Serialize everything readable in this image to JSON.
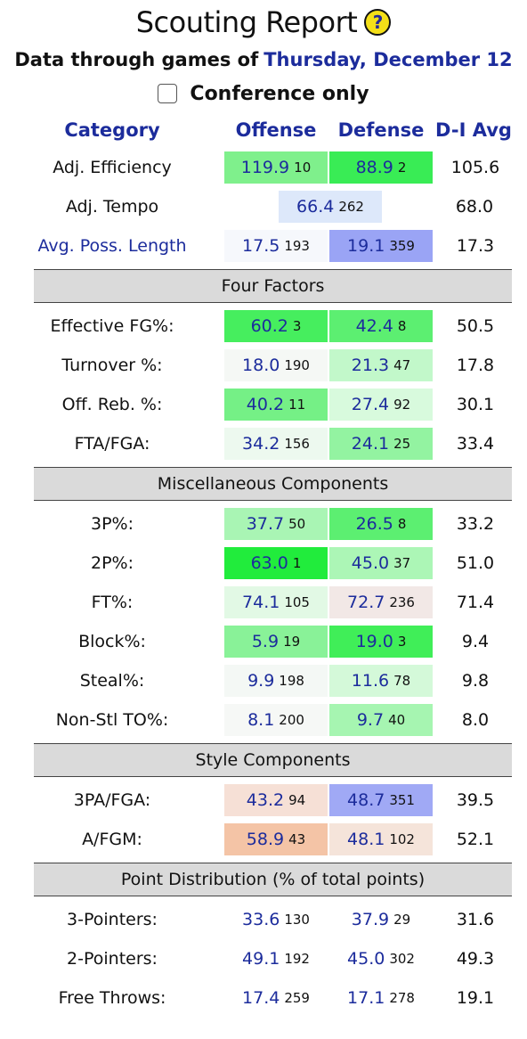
{
  "page": {
    "title": "Scouting Report",
    "help_symbol": "?",
    "subtitle_prefix": "Data through games of",
    "subtitle_date": "Thursday, December 12",
    "conference_label": "Conference only",
    "conference_checked": false
  },
  "headers": {
    "category": "Category",
    "offense": "Offense",
    "defense": "Defense",
    "avg": "D-I Avg"
  },
  "top": {
    "efficiency": {
      "label": "Adj. Efficiency",
      "off": "119.9",
      "off_rank": "10",
      "def": "88.9",
      "def_rank": "2",
      "avg": "105.6",
      "off_color": "#7ff08c",
      "def_color": "#39ec55"
    },
    "tempo": {
      "label": "Adj. Tempo",
      "val": "66.4",
      "rank": "262",
      "avg": "68.0",
      "color": "#dde8fa"
    },
    "poss": {
      "label": "Avg. Poss. Length",
      "off": "17.5",
      "off_rank": "193",
      "def": "19.1",
      "def_rank": "359",
      "avg": "17.3",
      "off_color": "#f6f8fc",
      "def_color": "#9aa4f5"
    }
  },
  "sections": {
    "four_factors": "Four Factors",
    "misc": "Miscellaneous Components",
    "style": "Style Components",
    "points": "Point Distribution (% of total points)"
  },
  "four_factors": [
    {
      "label": "Effective FG%:",
      "off": "60.2",
      "off_rank": "3",
      "def": "42.4",
      "def_rank": "8",
      "avg": "50.5",
      "off_color": "#46ee5e",
      "def_color": "#5cef71"
    },
    {
      "label": "Turnover %:",
      "off": "18.0",
      "off_rank": "190",
      "def": "21.3",
      "def_rank": "47",
      "avg": "17.8",
      "off_color": "#f5f8f5",
      "def_color": "#c2f8ca"
    },
    {
      "label": "Off. Reb. %:",
      "off": "40.2",
      "off_rank": "11",
      "def": "27.4",
      "def_rank": "92",
      "avg": "30.1",
      "off_color": "#75f086",
      "def_color": "#d8faDD"
    },
    {
      "label": "FTA/FGA:",
      "off": "34.2",
      "off_rank": "156",
      "def": "24.1",
      "def_rank": "25",
      "avg": "33.4",
      "off_color": "#edf9ef",
      "def_color": "#93f3a1"
    }
  ],
  "misc": [
    {
      "label": "3P%:",
      "off": "37.7",
      "off_rank": "50",
      "def": "26.5",
      "def_rank": "8",
      "avg": "33.2",
      "off_color": "#a9f5b4",
      "def_color": "#5cef71"
    },
    {
      "label": "2P%:",
      "off": "63.0",
      "off_rank": "1",
      "def": "45.0",
      "def_rank": "37",
      "avg": "51.0",
      "off_color": "#21ec3c",
      "def_color": "#acf6b6"
    },
    {
      "label": "FT%:",
      "off": "74.1",
      "off_rank": "105",
      "def": "72.7",
      "def_rank": "236",
      "avg": "71.4",
      "off_color": "#e2f9e5",
      "def_color": "#f2e8e6"
    },
    {
      "label": "Block%:",
      "off": "5.9",
      "off_rank": "19",
      "def": "19.0",
      "def_rank": "3",
      "avg": "9.4",
      "off_color": "#89f298",
      "def_color": "#40ee58"
    },
    {
      "label": "Steal%:",
      "off": "9.9",
      "off_rank": "198",
      "def": "11.6",
      "def_rank": "78",
      "avg": "9.8",
      "off_color": "#f4f8f5",
      "def_color": "#d4f9d9"
    },
    {
      "label": "Non-Stl TO%:",
      "off": "8.1",
      "off_rank": "200",
      "def": "9.7",
      "def_rank": "40",
      "avg": "8.0",
      "off_color": "#f6f8f6",
      "def_color": "#a6f5b1"
    }
  ],
  "style": [
    {
      "label": "3PA/FGA:",
      "off": "43.2",
      "off_rank": "94",
      "def": "48.7",
      "def_rank": "351",
      "avg": "39.5",
      "off_color": "#f6e0d6",
      "def_color": "#a0a9f5"
    },
    {
      "label": "A/FGM:",
      "off": "58.9",
      "off_rank": "43",
      "def": "48.1",
      "def_rank": "102",
      "avg": "52.1",
      "off_color": "#f4c4a6",
      "def_color": "#f5e4da"
    }
  ],
  "points": [
    {
      "label": "3-Pointers:",
      "off": "33.6",
      "off_rank": "130",
      "def": "37.9",
      "def_rank": "29",
      "avg": "31.6"
    },
    {
      "label": "2-Pointers:",
      "off": "49.1",
      "off_rank": "192",
      "def": "45.0",
      "def_rank": "302",
      "avg": "49.3"
    },
    {
      "label": "Free Throws:",
      "off": "17.4",
      "off_rank": "259",
      "def": "17.1",
      "def_rank": "278",
      "avg": "19.1"
    }
  ]
}
